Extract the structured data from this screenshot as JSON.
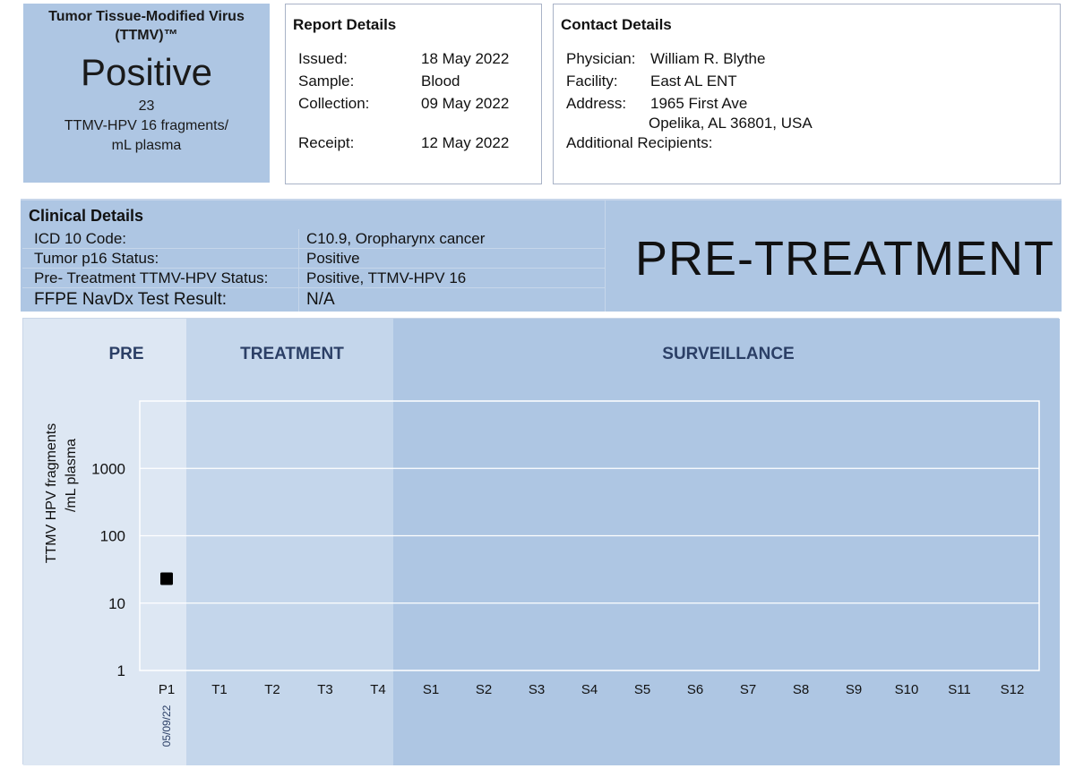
{
  "result": {
    "test_name": "Tumor Tissue-Modified Virus (TTMV)™",
    "status": "Positive",
    "count": "23",
    "unit": "TTMV-HPV 16 fragments/ mL plasma"
  },
  "report_details": {
    "heading": "Report Details",
    "rows": [
      {
        "label": "Issued:",
        "value": "18 May 2022"
      },
      {
        "label": "Sample:",
        "value": "Blood"
      },
      {
        "label": "Collection:",
        "value": "09 May 2022"
      },
      {
        "label": "Receipt:",
        "value": "12 May 2022"
      }
    ]
  },
  "contact_details": {
    "heading": "Contact Details",
    "rows": [
      {
        "label": "Physician:",
        "value": "William R. Blythe"
      },
      {
        "label": "Facility:",
        "value": "East AL ENT"
      },
      {
        "label": "Address:",
        "value": "1965 First Ave"
      },
      {
        "label": "",
        "value": "Opelika, AL 36801, USA"
      },
      {
        "label": "Additional Recipients:",
        "value": ""
      }
    ]
  },
  "clinical_details": {
    "heading": "Clinical Details",
    "rows": [
      {
        "label": "ICD 10 Code:",
        "value": "C10.9, Oropharynx cancer"
      },
      {
        "label": "Tumor p16 Status:",
        "value": "Positive"
      },
      {
        "label": "Pre- Treatment TTMV-HPV Status:",
        "value": "Positive, TTMV-HPV 16"
      },
      {
        "label": "FFPE NavDx Test Result:",
        "value": "N/A"
      }
    ],
    "phase_banner": "PRE-TREATMENT"
  },
  "chart_data": {
    "type": "scatter",
    "title": "",
    "ylabel": "TTMV  HPV fragments /mL plasma",
    "xlabel": "",
    "y_scale": "log",
    "ylim": [
      1,
      10000
    ],
    "y_ticks": [
      "1",
      "10",
      "100",
      "1000"
    ],
    "categories": [
      "P1",
      "T1",
      "T2",
      "T3",
      "T4",
      "S1",
      "S2",
      "S3",
      "S4",
      "S5",
      "S6",
      "S7",
      "S8",
      "S9",
      "S10",
      "S11",
      "S12"
    ],
    "phases": [
      {
        "label": "PRE",
        "color": "#dde7f3",
        "categories": [
          "P1"
        ]
      },
      {
        "label": "TREATMENT",
        "color": "#c4d6eb",
        "categories": [
          "T1",
          "T2",
          "T3",
          "T4"
        ]
      },
      {
        "label": "SURVEILLANCE",
        "color": "#aec6e3",
        "categories": [
          "S1",
          "S2",
          "S3",
          "S4",
          "S5",
          "S6",
          "S7",
          "S8",
          "S9",
          "S10",
          "S11",
          "S12"
        ]
      }
    ],
    "points": [
      {
        "category": "P1",
        "value": 23,
        "date": "05/09/22"
      }
    ],
    "grid": true,
    "marker_color": "#000000"
  }
}
